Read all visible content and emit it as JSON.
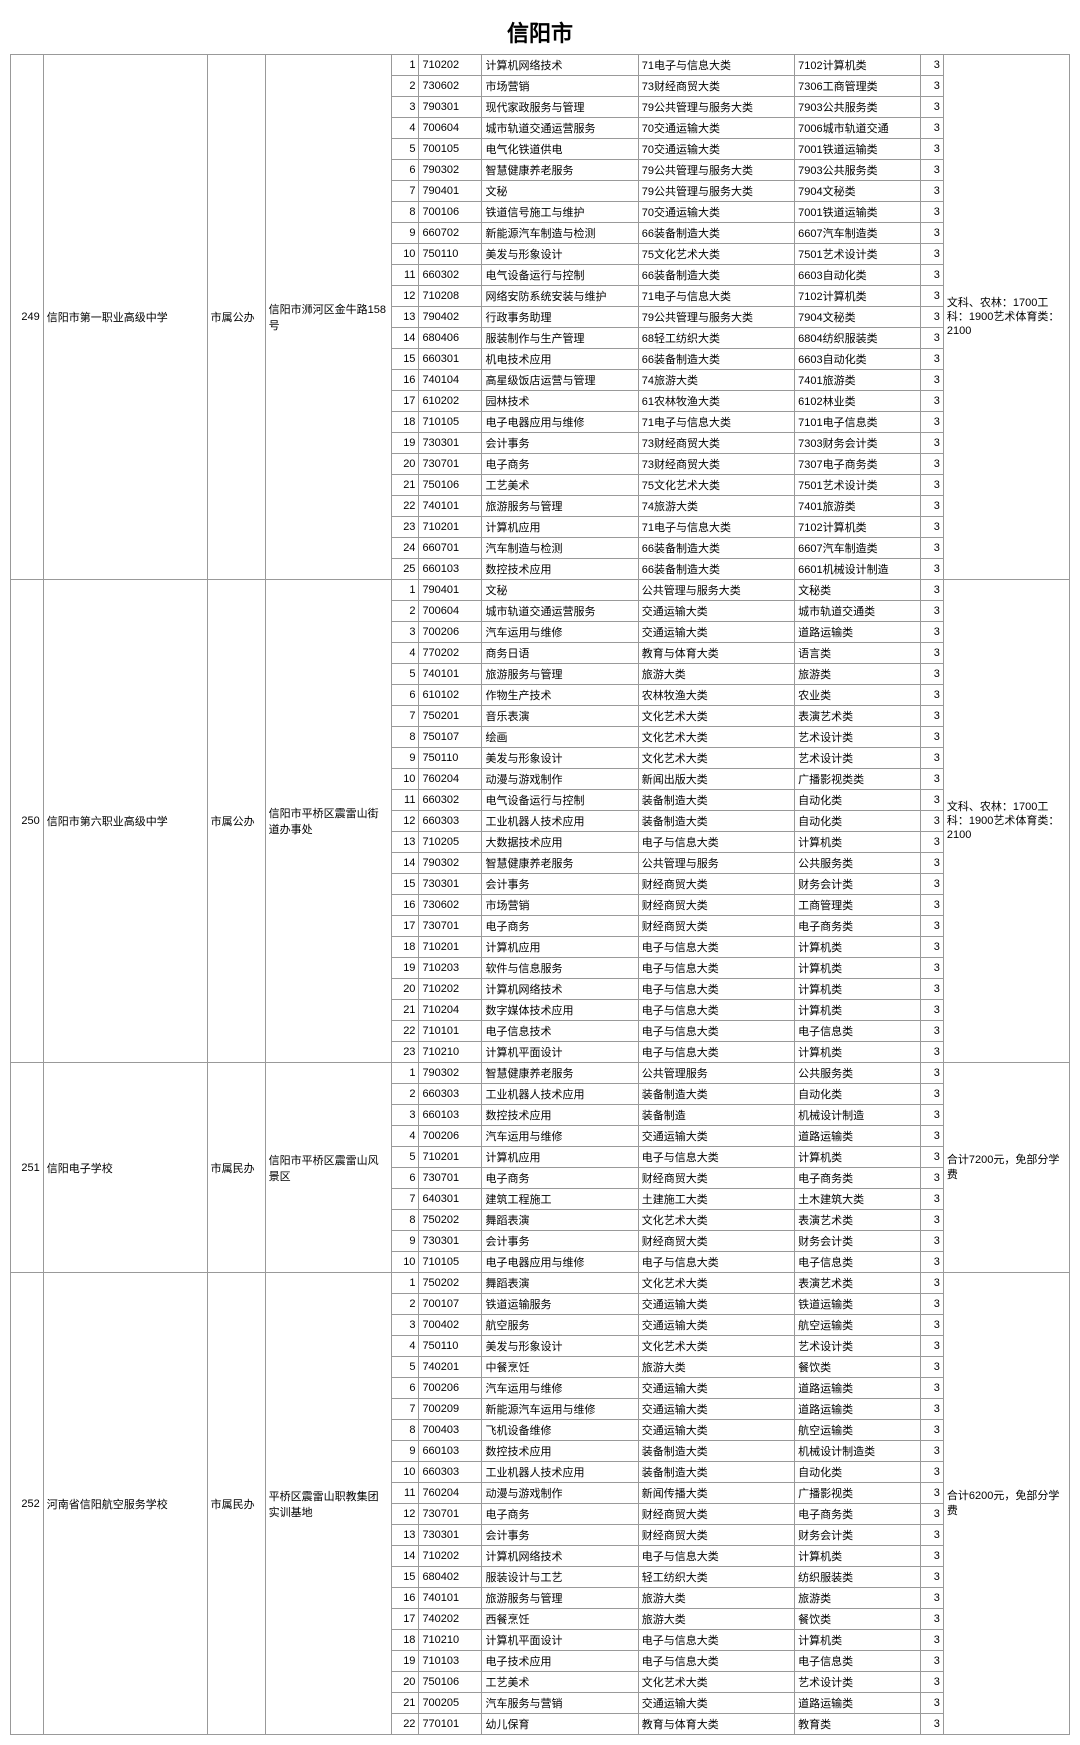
{
  "title": "信阳市",
  "schools": [
    {
      "idx": "249",
      "name": "信阳市第一职业高级中学",
      "type": "市属公办",
      "addr": "信阳市浉河区金牛路158号",
      "note": "文科、农林：1700工科：1900艺术体育类：2100",
      "rows": [
        {
          "n": "1",
          "code": "710202",
          "major": "计算机网络技术",
          "c1": "71电子与信息大类",
          "c2": "7102计算机类",
          "yr": "3"
        },
        {
          "n": "2",
          "code": "730602",
          "major": "市场营销",
          "c1": "73财经商贸大类",
          "c2": "7306工商管理类",
          "yr": "3"
        },
        {
          "n": "3",
          "code": "790301",
          "major": "现代家政服务与管理",
          "c1": "79公共管理与服务大类",
          "c2": "7903公共服务类",
          "yr": "3"
        },
        {
          "n": "4",
          "code": "700604",
          "major": "城市轨道交通运营服务",
          "c1": "70交通运输大类",
          "c2": "7006城市轨道交通",
          "yr": "3"
        },
        {
          "n": "5",
          "code": "700105",
          "major": "电气化铁道供电",
          "c1": "70交通运输大类",
          "c2": "7001铁道运输类",
          "yr": "3"
        },
        {
          "n": "6",
          "code": "790302",
          "major": "智慧健康养老服务",
          "c1": "79公共管理与服务大类",
          "c2": "7903公共服务类",
          "yr": "3"
        },
        {
          "n": "7",
          "code": "790401",
          "major": "文秘",
          "c1": "79公共管理与服务大类",
          "c2": "7904文秘类",
          "yr": "3"
        },
        {
          "n": "8",
          "code": "700106",
          "major": "铁道信号施工与维护",
          "c1": "70交通运输大类",
          "c2": "7001铁道运输类",
          "yr": "3"
        },
        {
          "n": "9",
          "code": "660702",
          "major": "新能源汽车制造与检测",
          "c1": "66装备制造大类",
          "c2": "6607汽车制造类",
          "yr": "3"
        },
        {
          "n": "10",
          "code": "750110",
          "major": "美发与形象设计",
          "c1": "75文化艺术大类",
          "c2": "7501艺术设计类",
          "yr": "3"
        },
        {
          "n": "11",
          "code": "660302",
          "major": "电气设备运行与控制",
          "c1": "66装备制造大类",
          "c2": "6603自动化类",
          "yr": "3"
        },
        {
          "n": "12",
          "code": "710208",
          "major": "网络安防系统安装与维护",
          "c1": "71电子与信息大类",
          "c2": "7102计算机类",
          "yr": "3"
        },
        {
          "n": "13",
          "code": "790402",
          "major": "行政事务助理",
          "c1": "79公共管理与服务大类",
          "c2": "7904文秘类",
          "yr": "3"
        },
        {
          "n": "14",
          "code": "680406",
          "major": "服装制作与生产管理",
          "c1": "68轻工纺织大类",
          "c2": "6804纺织服装类",
          "yr": "3"
        },
        {
          "n": "15",
          "code": "660301",
          "major": "机电技术应用",
          "c1": "66装备制造大类",
          "c2": "6603自动化类",
          "yr": "3"
        },
        {
          "n": "16",
          "code": "740104",
          "major": "高星级饭店运营与管理",
          "c1": "74旅游大类",
          "c2": "7401旅游类",
          "yr": "3"
        },
        {
          "n": "17",
          "code": "610202",
          "major": "园林技术",
          "c1": "61农林牧渔大类",
          "c2": "6102林业类",
          "yr": "3"
        },
        {
          "n": "18",
          "code": "710105",
          "major": "电子电器应用与维修",
          "c1": "71电子与信息大类",
          "c2": "7101电子信息类",
          "yr": "3"
        },
        {
          "n": "19",
          "code": "730301",
          "major": "会计事务",
          "c1": "73财经商贸大类",
          "c2": "7303财务会计类",
          "yr": "3"
        },
        {
          "n": "20",
          "code": "730701",
          "major": "电子商务",
          "c1": "73财经商贸大类",
          "c2": "7307电子商务类",
          "yr": "3"
        },
        {
          "n": "21",
          "code": "750106",
          "major": "工艺美术",
          "c1": "75文化艺术大类",
          "c2": "7501艺术设计类",
          "yr": "3"
        },
        {
          "n": "22",
          "code": "740101",
          "major": "旅游服务与管理",
          "c1": "74旅游大类",
          "c2": "7401旅游类",
          "yr": "3"
        },
        {
          "n": "23",
          "code": "710201",
          "major": "计算机应用",
          "c1": "71电子与信息大类",
          "c2": "7102计算机类",
          "yr": "3"
        },
        {
          "n": "24",
          "code": "660701",
          "major": "汽车制造与检测",
          "c1": "66装备制造大类",
          "c2": "6607汽车制造类",
          "yr": "3"
        },
        {
          "n": "25",
          "code": "660103",
          "major": "数控技术应用",
          "c1": "66装备制造大类",
          "c2": "6601机械设计制造",
          "yr": "3"
        }
      ]
    },
    {
      "idx": "250",
      "name": "信阳市第六职业高级中学",
      "type": "市属公办",
      "addr": "信阳市平桥区震雷山街道办事处",
      "note": "文科、农林：1700工科：1900艺术体育类：2100",
      "rows": [
        {
          "n": "1",
          "code": "790401",
          "major": "文秘",
          "c1": "公共管理与服务大类",
          "c2": "文秘类",
          "yr": "3"
        },
        {
          "n": "2",
          "code": "700604",
          "major": "城市轨道交通运营服务",
          "c1": "交通运输大类",
          "c2": "城市轨道交通类",
          "yr": "3"
        },
        {
          "n": "3",
          "code": "700206",
          "major": "汽车运用与维修",
          "c1": "交通运输大类",
          "c2": "道路运输类",
          "yr": "3"
        },
        {
          "n": "4",
          "code": "770202",
          "major": "商务日语",
          "c1": "教育与体育大类",
          "c2": "语言类",
          "yr": "3"
        },
        {
          "n": "5",
          "code": "740101",
          "major": "旅游服务与管理",
          "c1": "旅游大类",
          "c2": "旅游类",
          "yr": "3"
        },
        {
          "n": "6",
          "code": "610102",
          "major": "作物生产技术",
          "c1": "农林牧渔大类",
          "c2": "农业类",
          "yr": "3"
        },
        {
          "n": "7",
          "code": "750201",
          "major": "音乐表演",
          "c1": "文化艺术大类",
          "c2": "表演艺术类",
          "yr": "3"
        },
        {
          "n": "8",
          "code": "750107",
          "major": "绘画",
          "c1": "文化艺术大类",
          "c2": "艺术设计类",
          "yr": "3"
        },
        {
          "n": "9",
          "code": "750110",
          "major": "美发与形象设计",
          "c1": "文化艺术大类",
          "c2": "艺术设计类",
          "yr": "3"
        },
        {
          "n": "10",
          "code": "760204",
          "major": "动漫与游戏制作",
          "c1": "新闻出版大类",
          "c2": "广播影视类类",
          "yr": "3"
        },
        {
          "n": "11",
          "code": "660302",
          "major": "电气设备运行与控制",
          "c1": "装备制造大类",
          "c2": "自动化类",
          "yr": "3"
        },
        {
          "n": "12",
          "code": "660303",
          "major": "工业机器人技术应用",
          "c1": "装备制造大类",
          "c2": "自动化类",
          "yr": "3"
        },
        {
          "n": "13",
          "code": "710205",
          "major": "大数据技术应用",
          "c1": "电子与信息大类",
          "c2": "计算机类",
          "yr": "3"
        },
        {
          "n": "14",
          "code": "790302",
          "major": "智慧健康养老服务",
          "c1": "公共管理与服务",
          "c2": "公共服务类",
          "yr": "3"
        },
        {
          "n": "15",
          "code": "730301",
          "major": "会计事务",
          "c1": "财经商贸大类",
          "c2": "财务会计类",
          "yr": "3"
        },
        {
          "n": "16",
          "code": "730602",
          "major": "市场营销",
          "c1": "财经商贸大类",
          "c2": "工商管理类",
          "yr": "3"
        },
        {
          "n": "17",
          "code": "730701",
          "major": "电子商务",
          "c1": "财经商贸大类",
          "c2": "电子商务类",
          "yr": "3"
        },
        {
          "n": "18",
          "code": "710201",
          "major": "计算机应用",
          "c1": "电子与信息大类",
          "c2": "计算机类",
          "yr": "3"
        },
        {
          "n": "19",
          "code": "710203",
          "major": "软件与信息服务",
          "c1": "电子与信息大类",
          "c2": "计算机类",
          "yr": "3"
        },
        {
          "n": "20",
          "code": "710202",
          "major": "计算机网络技术",
          "c1": "电子与信息大类",
          "c2": "计算机类",
          "yr": "3"
        },
        {
          "n": "21",
          "code": "710204",
          "major": "数字媒体技术应用",
          "c1": "电子与信息大类",
          "c2": "计算机类",
          "yr": "3"
        },
        {
          "n": "22",
          "code": "710101",
          "major": "电子信息技术",
          "c1": "电子与信息大类",
          "c2": "电子信息类",
          "yr": "3"
        },
        {
          "n": "23",
          "code": "710210",
          "major": "计算机平面设计",
          "c1": "电子与信息大类",
          "c2": "计算机类",
          "yr": "3"
        }
      ]
    },
    {
      "idx": "251",
      "name": "信阳电子学校",
      "type": "市属民办",
      "addr": "信阳市平桥区震雷山风景区",
      "note": "合计7200元，免部分学费",
      "rows": [
        {
          "n": "1",
          "code": "790302",
          "major": "智慧健康养老服务",
          "c1": "公共管理服务",
          "c2": "公共服务类",
          "yr": "3"
        },
        {
          "n": "2",
          "code": "660303",
          "major": "工业机器人技术应用",
          "c1": "装备制造大类",
          "c2": "自动化类",
          "yr": "3"
        },
        {
          "n": "3",
          "code": "660103",
          "major": "数控技术应用",
          "c1": "装备制造",
          "c2": "机械设计制造",
          "yr": "3"
        },
        {
          "n": "4",
          "code": "700206",
          "major": "汽车运用与维修",
          "c1": "交通运输大类",
          "c2": "道路运输类",
          "yr": "3"
        },
        {
          "n": "5",
          "code": "710201",
          "major": "计算机应用",
          "c1": "电子与信息大类",
          "c2": "计算机类",
          "yr": "3"
        },
        {
          "n": "6",
          "code": "730701",
          "major": "电子商务",
          "c1": "财经商贸大类",
          "c2": "电子商务类",
          "yr": "3"
        },
        {
          "n": "7",
          "code": "640301",
          "major": "建筑工程施工",
          "c1": "土建施工大类",
          "c2": "土木建筑大类",
          "yr": "3"
        },
        {
          "n": "8",
          "code": "750202",
          "major": "舞蹈表演",
          "c1": "文化艺术大类",
          "c2": "表演艺术类",
          "yr": "3"
        },
        {
          "n": "9",
          "code": "730301",
          "major": "会计事务",
          "c1": "财经商贸大类",
          "c2": "财务会计类",
          "yr": "3"
        },
        {
          "n": "10",
          "code": "710105",
          "major": "电子电器应用与维修",
          "c1": "电子与信息大类",
          "c2": "电子信息类",
          "yr": "3"
        }
      ]
    },
    {
      "idx": "252",
      "name": "河南省信阳航空服务学校",
      "type": "市属民办",
      "addr": "平桥区震雷山职教集团实训基地",
      "note": "合计6200元，免部分学费",
      "rows": [
        {
          "n": "1",
          "code": "750202",
          "major": "舞蹈表演",
          "c1": "文化艺术大类",
          "c2": "表演艺术类",
          "yr": "3"
        },
        {
          "n": "2",
          "code": "700107",
          "major": "铁道运输服务",
          "c1": "交通运输大类",
          "c2": "铁道运输类",
          "yr": "3"
        },
        {
          "n": "3",
          "code": "700402",
          "major": "航空服务",
          "c1": "交通运输大类",
          "c2": "航空运输类",
          "yr": "3"
        },
        {
          "n": "4",
          "code": "750110",
          "major": "美发与形象设计",
          "c1": "文化艺术大类",
          "c2": "艺术设计类",
          "yr": "3"
        },
        {
          "n": "5",
          "code": "740201",
          "major": "中餐烹饪",
          "c1": "旅游大类",
          "c2": "餐饮类",
          "yr": "3"
        },
        {
          "n": "6",
          "code": "700206",
          "major": "汽车运用与维修",
          "c1": "交通运输大类",
          "c2": "道路运输类",
          "yr": "3"
        },
        {
          "n": "7",
          "code": "700209",
          "major": "新能源汽车运用与维修",
          "c1": "交通运输大类",
          "c2": "道路运输类",
          "yr": "3"
        },
        {
          "n": "8",
          "code": "700403",
          "major": "飞机设备维修",
          "c1": "交通运输大类",
          "c2": "航空运输类",
          "yr": "3"
        },
        {
          "n": "9",
          "code": "660103",
          "major": "数控技术应用",
          "c1": "装备制造大类",
          "c2": "机械设计制造类",
          "yr": "3"
        },
        {
          "n": "10",
          "code": "660303",
          "major": "工业机器人技术应用",
          "c1": "装备制造大类",
          "c2": "自动化类",
          "yr": "3"
        },
        {
          "n": "11",
          "code": "760204",
          "major": "动漫与游戏制作",
          "c1": "新闻传播大类",
          "c2": "广播影视类",
          "yr": "3"
        },
        {
          "n": "12",
          "code": "730701",
          "major": "电子商务",
          "c1": "财经商贸大类",
          "c2": "电子商务类",
          "yr": "3"
        },
        {
          "n": "13",
          "code": "730301",
          "major": "会计事务",
          "c1": "财经商贸大类",
          "c2": "财务会计类",
          "yr": "3"
        },
        {
          "n": "14",
          "code": "710202",
          "major": "计算机网络技术",
          "c1": "电子与信息大类",
          "c2": "计算机类",
          "yr": "3"
        },
        {
          "n": "15",
          "code": "680402",
          "major": "服装设计与工艺",
          "c1": "轻工纺织大类",
          "c2": "纺织服装类",
          "yr": "3"
        },
        {
          "n": "16",
          "code": "740101",
          "major": "旅游服务与管理",
          "c1": "旅游大类",
          "c2": "旅游类",
          "yr": "3"
        },
        {
          "n": "17",
          "code": "740202",
          "major": "西餐烹饪",
          "c1": "旅游大类",
          "c2": "餐饮类",
          "yr": "3"
        },
        {
          "n": "18",
          "code": "710210",
          "major": "计算机平面设计",
          "c1": "电子与信息大类",
          "c2": "计算机类",
          "yr": "3"
        },
        {
          "n": "19",
          "code": "710103",
          "major": "电子技术应用",
          "c1": "电子与信息大类",
          "c2": "电子信息类",
          "yr": "3"
        },
        {
          "n": "20",
          "code": "750106",
          "major": "工艺美术",
          "c1": "文化艺术大类",
          "c2": "艺术设计类",
          "yr": "3"
        },
        {
          "n": "21",
          "code": "700205",
          "major": "汽车服务与营销",
          "c1": "交通运输大类",
          "c2": "道路运输类",
          "yr": "3"
        },
        {
          "n": "22",
          "code": "770101",
          "major": "幼儿保育",
          "c1": "教育与体育大类",
          "c2": "教育类",
          "yr": "3"
        }
      ]
    }
  ]
}
